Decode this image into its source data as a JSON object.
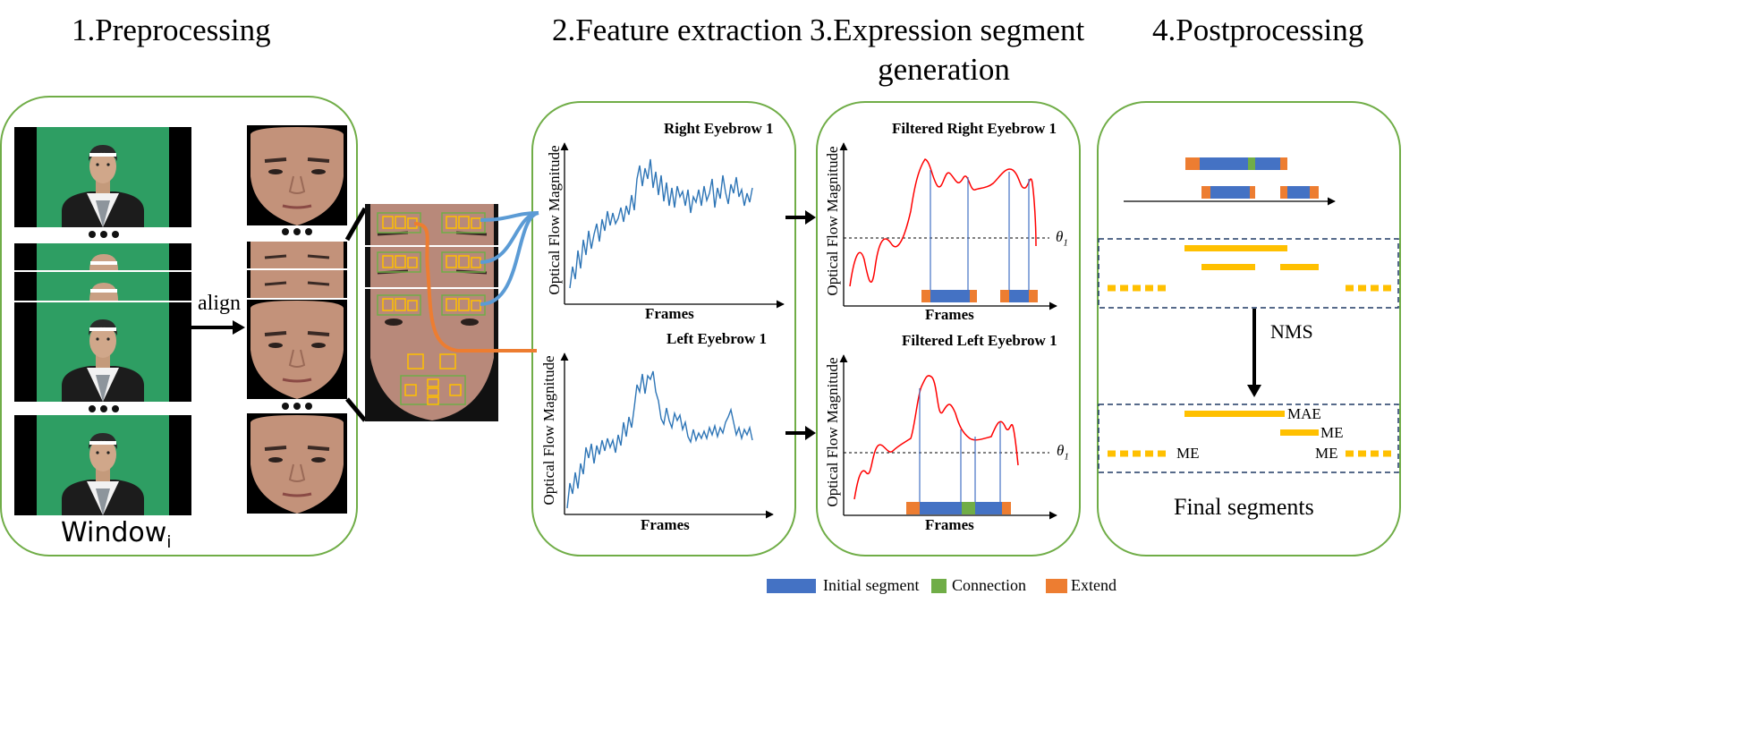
{
  "stages": {
    "s1": "1.Preprocessing",
    "s2": "2.Feature extraction",
    "s3_line1": "3.Expression segment",
    "s3_line2": "generation",
    "s4": "4.Postprocessing"
  },
  "preprocessing": {
    "align": "align",
    "window_base": "Window",
    "window_sub": "i"
  },
  "feature": {
    "top_title": "Right Eyebrow 1",
    "bottom_title": "Left Eyebrow 1",
    "ylabel": "Optical Flow Magnitude",
    "xlabel": "Frames"
  },
  "generation": {
    "top_title": "Filtered Right Eyebrow 1",
    "bottom_title": "Filtered Left Eyebrow 1",
    "ylabel": "Optical Flow Magnitude",
    "xlabel": "Frames",
    "threshold": "θ",
    "threshold_sub": "1"
  },
  "post": {
    "nms": "NMS",
    "mae": "MAE",
    "me": "ME",
    "final": "Final segments"
  },
  "legend": {
    "initial": "Initial segment",
    "connection": "Connection",
    "extend": "Extend"
  },
  "colors": {
    "panel_border": "#70ad47",
    "initial": "#4472c4",
    "connection": "#70ad47",
    "extend": "#ed7d31",
    "yellow": "#ffc000",
    "curve_blue": "#2e75b6",
    "curve_red": "#ff0000",
    "backdrop": "#2e9e63"
  }
}
